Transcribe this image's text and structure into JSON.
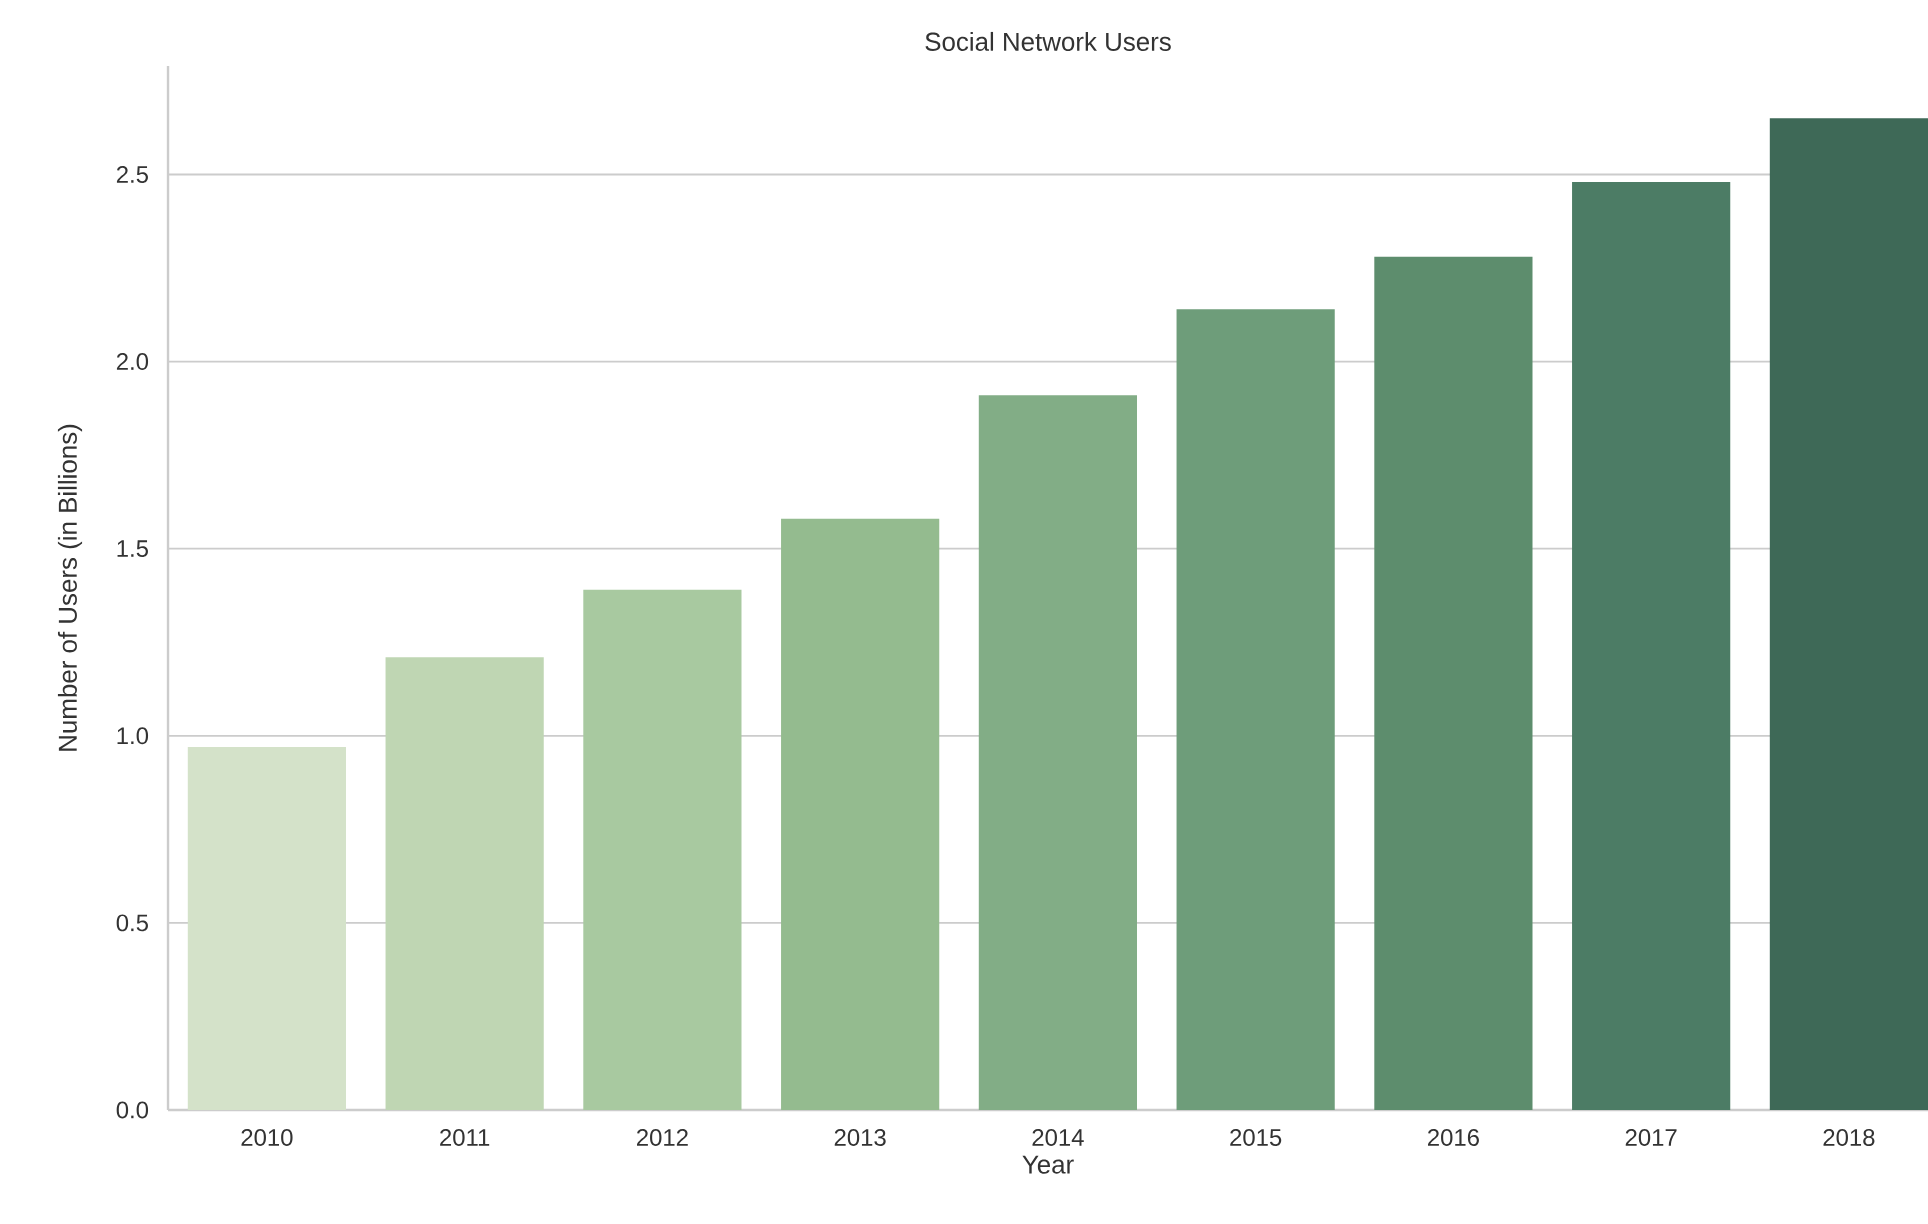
{
  "chart_data": {
    "type": "bar",
    "title": "Social Network Users",
    "xlabel": "Year",
    "ylabel": "Number of Users (in Billions)",
    "categories": [
      "2010",
      "2011",
      "2012",
      "2013",
      "2014",
      "2015",
      "2016",
      "2017",
      "2018"
    ],
    "values": [
      0.97,
      1.21,
      1.39,
      1.58,
      1.91,
      2.14,
      2.28,
      2.48,
      2.65
    ],
    "colors": [
      "#d4e2c9",
      "#bfd6b3",
      "#a8c9a0",
      "#94bb8f",
      "#82ad86",
      "#6e9d7a",
      "#5d8d6d",
      "#4c7c65",
      "#3e6957"
    ],
    "ylim": [
      0,
      2.79
    ],
    "yticks": [
      {
        "value": 0,
        "label": "0.0"
      },
      {
        "value": 0.5,
        "label": "0.5"
      },
      {
        "value": 1,
        "label": "1.0"
      },
      {
        "value": 1.5,
        "label": "1.5"
      },
      {
        "value": 2,
        "label": "2.0"
      },
      {
        "value": 2.5,
        "label": "2.5"
      }
    ],
    "grid": "y"
  }
}
